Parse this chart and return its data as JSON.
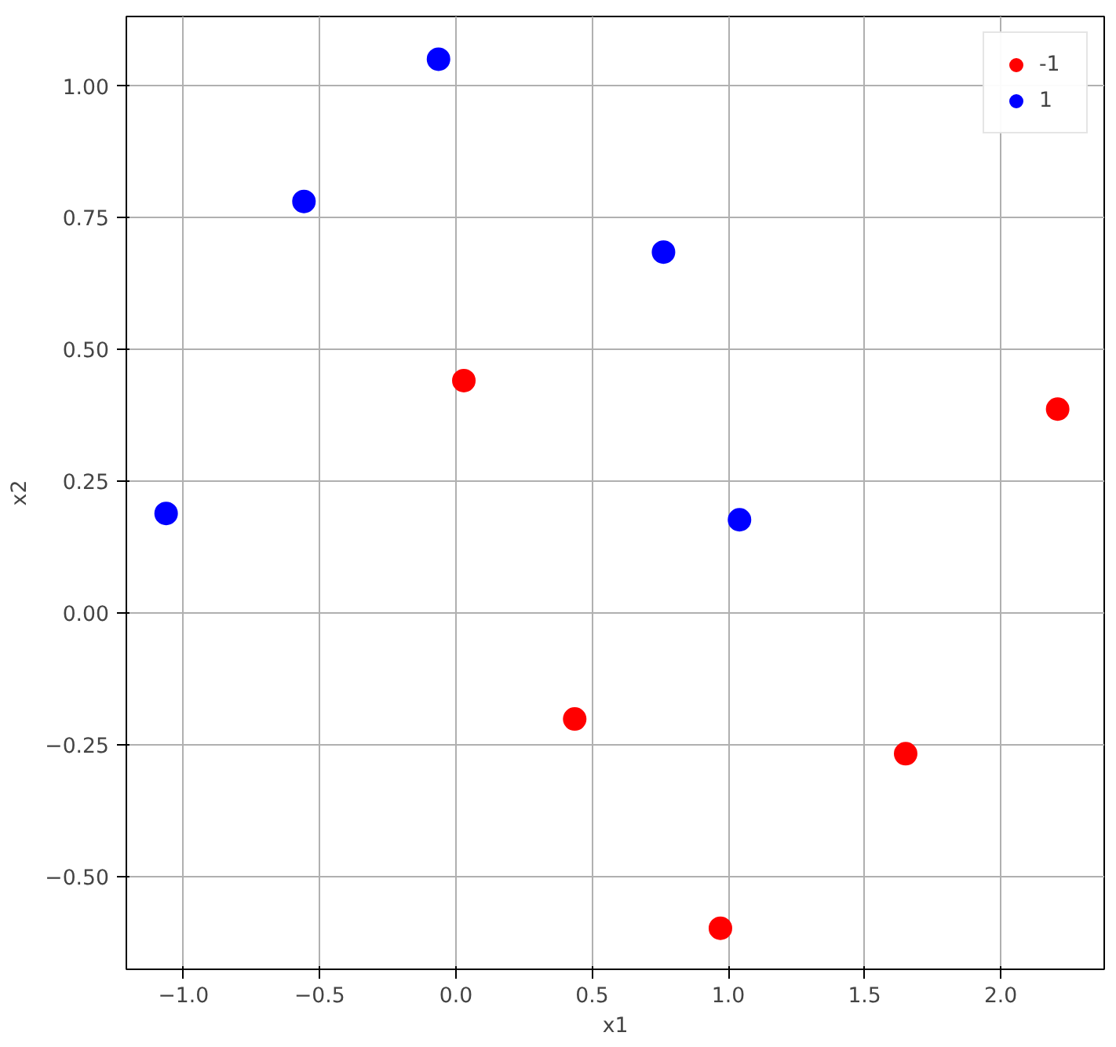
{
  "chart_data": {
    "type": "scatter",
    "xlabel": "x1",
    "ylabel": "x2",
    "series": [
      {
        "name": "-1",
        "color": "#ff0000",
        "x": [
          0.029,
          0.436,
          0.971,
          1.651,
          2.209
        ],
        "values": [
          0.441,
          -0.201,
          -0.598,
          -0.267,
          0.387
        ]
      },
      {
        "name": "1",
        "color": "#0000ff",
        "x": [
          -1.064,
          -0.558,
          -0.064,
          0.762,
          1.041
        ],
        "values": [
          0.189,
          0.781,
          1.051,
          0.685,
          0.177
        ]
      }
    ],
    "xlim": [
      -1.21,
      2.38
    ],
    "ylim": [
      -0.676,
      1.132
    ],
    "xticks": [
      {
        "value": -1,
        "label": "−1.0"
      },
      {
        "value": -0.5,
        "label": "−0.5"
      },
      {
        "value": 0,
        "label": "0.0"
      },
      {
        "value": 0.5,
        "label": "0.5"
      },
      {
        "value": 1,
        "label": "1.0"
      },
      {
        "value": 1.5,
        "label": "1.5"
      },
      {
        "value": 2,
        "label": "2.0"
      }
    ],
    "yticks": [
      {
        "value": -0.5,
        "label": "−0.50"
      },
      {
        "value": -0.25,
        "label": "−0.25"
      },
      {
        "value": 0,
        "label": "0.00"
      },
      {
        "value": 0.25,
        "label": "0.25"
      },
      {
        "value": 0.5,
        "label": "0.50"
      },
      {
        "value": 0.75,
        "label": "0.75"
      },
      {
        "value": 1,
        "label": "1.00"
      }
    ],
    "grid": true,
    "legend": "top right",
    "marker": "circle"
  }
}
